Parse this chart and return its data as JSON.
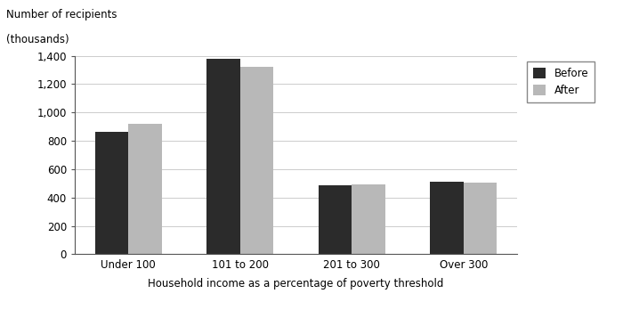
{
  "categories": [
    "Under 100",
    "101 to 200",
    "201 to 300",
    "Over 300"
  ],
  "before_values": [
    865,
    1380,
    485,
    510
  ],
  "after_values": [
    920,
    1320,
    490,
    505
  ],
  "before_color": "#2b2b2b",
  "after_color": "#b8b8b8",
  "ylabel_line1": "Number of recipients",
  "ylabel_line2": "(thousands)",
  "xlabel": "Household income as a percentage of poverty threshold",
  "legend_labels": [
    "Before",
    "After"
  ],
  "ylim": [
    0,
    1400
  ],
  "yticks": [
    0,
    200,
    400,
    600,
    800,
    1000,
    1200,
    1400
  ],
  "ytick_labels": [
    "0",
    "200",
    "400",
    "600",
    "800",
    "1,000",
    "1,200",
    "1,400"
  ],
  "bar_width": 0.3,
  "background_color": "#ffffff",
  "figsize": [
    7.0,
    3.48
  ],
  "dpi": 100
}
